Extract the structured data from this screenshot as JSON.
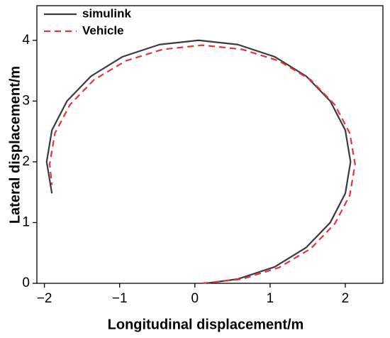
{
  "chart_data": {
    "type": "line",
    "x_label": "Longitudinal displacement/m",
    "y_label": "Lateral displacement/m",
    "xlim": [
      -2.1,
      2.5
    ],
    "ylim": [
      0,
      4.57
    ],
    "xticks": [
      {
        "value": -2,
        "label": "−2"
      },
      {
        "value": -1,
        "label": "−1"
      },
      0,
      1,
      2
    ],
    "yticks": [
      0,
      1,
      2,
      3,
      4
    ],
    "legend": "upper left",
    "series": [
      {
        "name": "simulink",
        "color": "#3a3a3a",
        "linestyle": "solid",
        "x": [
          0.15,
          0.57,
          1.06,
          1.48,
          1.8,
          2.0,
          2.07,
          2.0,
          1.8,
          1.48,
          1.06,
          0.57,
          0.05,
          -0.47,
          -0.96,
          -1.38,
          -1.7,
          -1.9,
          -1.97,
          -1.9
        ],
        "values": [
          0,
          0.07,
          0.27,
          0.59,
          1.0,
          1.48,
          2,
          2.52,
          3.0,
          3.41,
          3.73,
          3.93,
          4,
          3.93,
          3.73,
          3.41,
          3.0,
          2.52,
          2,
          1.48
        ]
      },
      {
        "name": "Vehicle",
        "color": "#e8333a",
        "linestyle": "dashed",
        "x": [
          0.1,
          0.63,
          1.12,
          1.54,
          1.86,
          2.06,
          2.13,
          2.06,
          1.86,
          1.54,
          1.12,
          0.63,
          0.1,
          -0.43,
          -0.92,
          -1.34,
          -1.66,
          -1.86,
          -1.93,
          -1.9
        ],
        "values": [
          0,
          0.07,
          0.26,
          0.57,
          0.98,
          1.45,
          1.96,
          2.47,
          2.94,
          3.35,
          3.66,
          3.85,
          3.92,
          3.85,
          3.66,
          3.35,
          2.94,
          2.47,
          1.96,
          1.62
        ]
      }
    ]
  }
}
